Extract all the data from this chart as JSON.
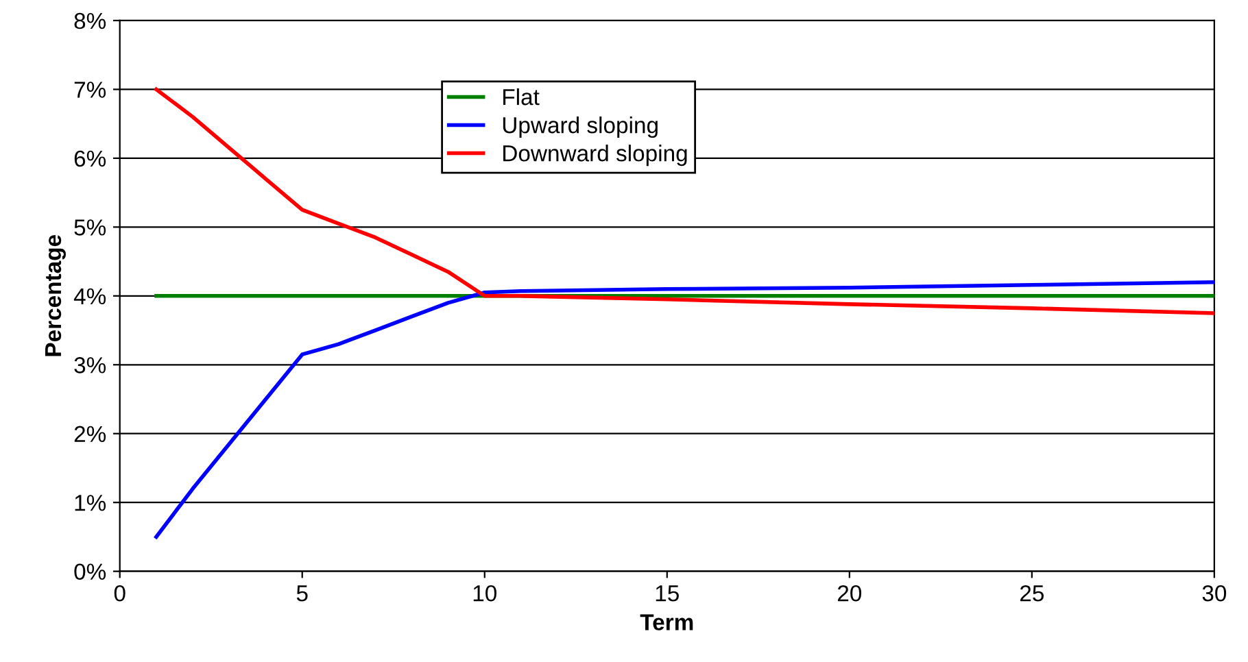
{
  "chart_data": {
    "type": "line",
    "xlabel": "Term",
    "ylabel": "Percentage",
    "xlim": [
      0,
      30
    ],
    "xticks": [
      0,
      5,
      10,
      15,
      20,
      25,
      30
    ],
    "ylim": [
      0,
      8
    ],
    "yticks": [
      {
        "value": 0,
        "label": "0%"
      },
      {
        "value": 1,
        "label": "1%"
      },
      {
        "value": 2,
        "label": "2%"
      },
      {
        "value": 3,
        "label": "3%"
      },
      {
        "value": 4,
        "label": "4%"
      },
      {
        "value": 5,
        "label": "5%"
      },
      {
        "value": 6,
        "label": "6%"
      },
      {
        "value": 7,
        "label": "7%"
      },
      {
        "value": 8,
        "label": "8%"
      }
    ],
    "grid": "y",
    "legend": "top",
    "marker": "none",
    "line_style": "solid",
    "series": [
      {
        "name": "Flat",
        "color": "#008000",
        "x": [
          1,
          30
        ],
        "values": [
          4,
          4
        ]
      },
      {
        "name": "Upward sloping",
        "color": "#0000ff",
        "x": [
          1,
          2,
          3,
          4,
          5,
          6,
          7,
          8,
          9,
          10,
          11,
          15,
          20,
          25,
          30
        ],
        "values": [
          0.5,
          1.2,
          1.85,
          2.5,
          3.15,
          3.3,
          3.5,
          3.7,
          3.9,
          4.05,
          4.07,
          4.1,
          4.12,
          4.16,
          4.2
        ]
      },
      {
        "name": "Downward sloping",
        "color": "#ff0000",
        "x": [
          1,
          2,
          3,
          4,
          5,
          6,
          7,
          8,
          9,
          10,
          11,
          15,
          20,
          25,
          30
        ],
        "values": [
          7.0,
          6.6,
          6.15,
          5.7,
          5.25,
          5.05,
          4.85,
          4.6,
          4.35,
          4.0,
          4.0,
          3.95,
          3.88,
          3.82,
          3.75
        ]
      }
    ]
  }
}
